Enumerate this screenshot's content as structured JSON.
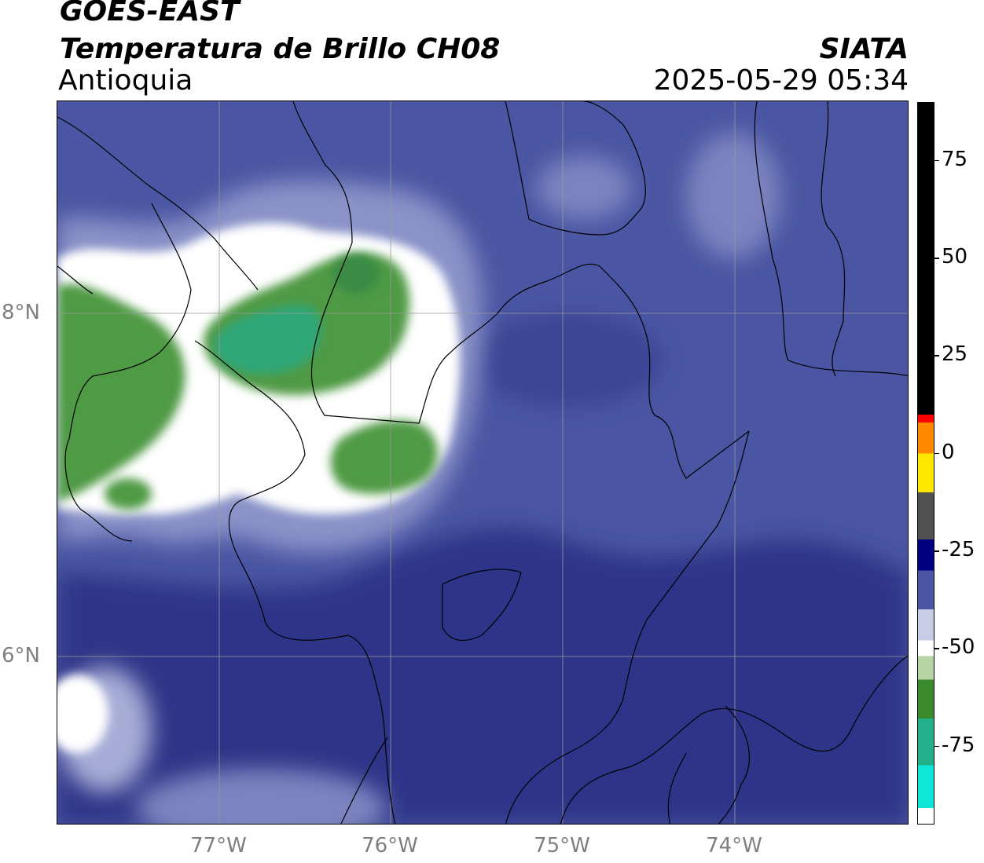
{
  "header": {
    "satellite": "GOES-EAST",
    "product": "Temperatura de Brillo CH08",
    "region": "Antioquia",
    "agency": "SIATA",
    "timestamp": "2025-05-29 05:34"
  },
  "map": {
    "lat_labels": [
      {
        "text": "8°N",
        "lat": 8
      },
      {
        "text": "6°N",
        "lat": 6
      }
    ],
    "lon_labels": [
      {
        "text": "77°W",
        "lon": -77
      },
      {
        "text": "76°W",
        "lon": -76
      },
      {
        "text": "75°W",
        "lon": -75
      },
      {
        "text": "74°W",
        "lon": -74
      }
    ],
    "extent": {
      "lon_min": -77.95,
      "lon_max": -72.98,
      "lat_min": 5.06,
      "lat_max": 9.27
    },
    "colors": {
      "background_blue": "#4a56a3",
      "dark_blue": "#2f3488",
      "light_blue": "#8a93c8",
      "white": "#ffffff",
      "green": "#4a9040",
      "teal": "#2fa779",
      "gridline": "#9a9a9a",
      "border": "#000000"
    }
  },
  "colorbar": {
    "unit_range": [
      -95,
      90
    ],
    "ticks": [
      "75",
      "50",
      "25",
      "0",
      "-25",
      "-50",
      "-75"
    ],
    "tick_values": [
      75,
      50,
      25,
      0,
      -25,
      -50,
      -75
    ],
    "segments": [
      {
        "from": 10,
        "to": 90,
        "color": "#000000"
      },
      {
        "from": 8,
        "to": 10,
        "color": "#ff0000"
      },
      {
        "from": 0,
        "to": 8,
        "color": "#ff8800"
      },
      {
        "from": -10,
        "to": 0,
        "color": "#ffe800"
      },
      {
        "from": -22,
        "to": -10,
        "color": "#505050"
      },
      {
        "from": -30,
        "to": -22,
        "color": "#000080"
      },
      {
        "from": -40,
        "to": -30,
        "color": "#4a56a3"
      },
      {
        "from": -48,
        "to": -40,
        "color": "#c8cce6"
      },
      {
        "from": -52,
        "to": -48,
        "color": "#ffffff"
      },
      {
        "from": -58,
        "to": -52,
        "color": "#b7d4a7"
      },
      {
        "from": -68,
        "to": -58,
        "color": "#3c8a2e"
      },
      {
        "from": -80,
        "to": -68,
        "color": "#22b08a"
      },
      {
        "from": -91,
        "to": -80,
        "color": "#10e6d8"
      },
      {
        "from": -95,
        "to": -91,
        "color": "#ffffff"
      }
    ]
  }
}
